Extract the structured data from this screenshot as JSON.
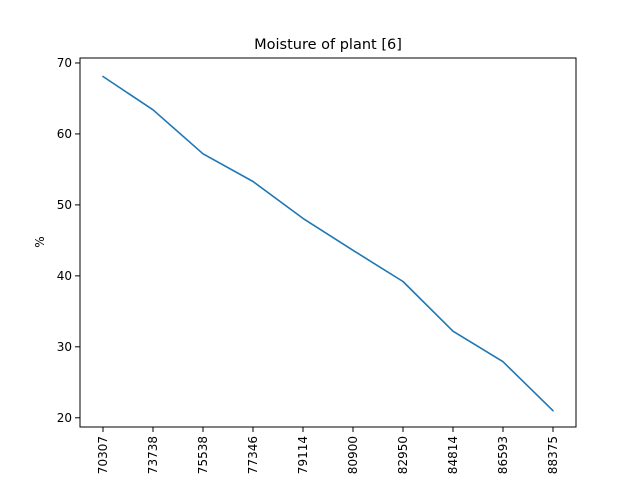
{
  "chart_data": {
    "type": "line",
    "title": "Moisture of plant [6]",
    "xlabel": "",
    "ylabel": "%",
    "categories": [
      "70307",
      "73738",
      "75538",
      "77346",
      "79114",
      "80900",
      "82950",
      "84814",
      "86593",
      "88375"
    ],
    "series": [
      {
        "values": [
          68.1,
          63.4,
          57.2,
          53.3,
          48.1,
          43.6,
          39.2,
          32.2,
          27.9,
          21.0
        ]
      }
    ],
    "y_ticks": [
      20,
      30,
      40,
      50,
      60,
      70
    ],
    "ylim": [
      18.7,
      70.7
    ],
    "grid": false,
    "line_color": "#1f77b4"
  }
}
